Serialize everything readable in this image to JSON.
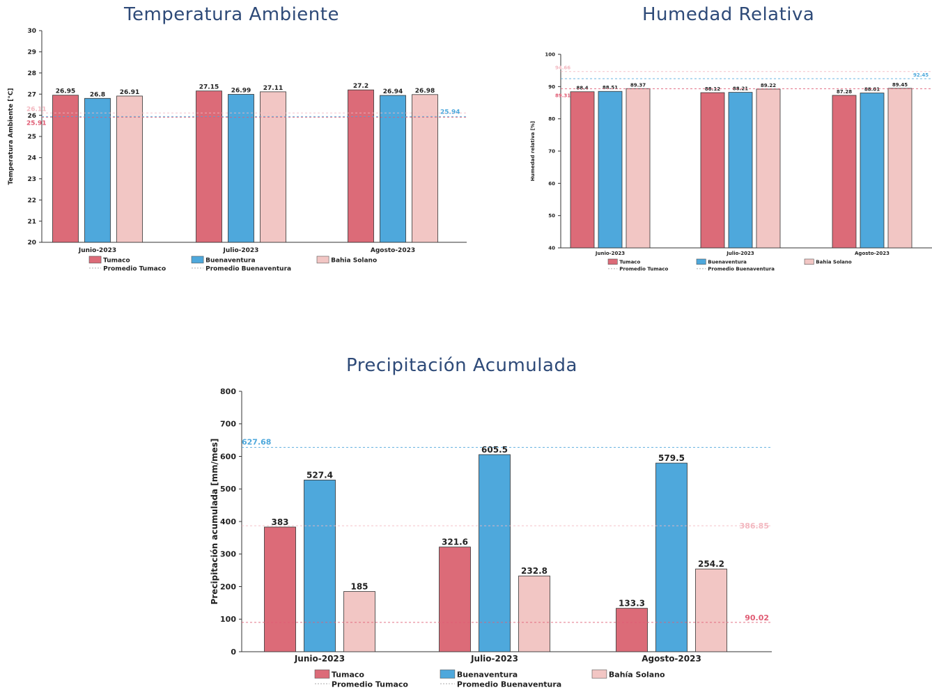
{
  "colors": {
    "tumaco": "#dc6b78",
    "buenaventura": "#4ea8dc",
    "bahia_solano": "#f2c6c4",
    "axis": "#333333",
    "avg_tumaco": "#e05c74",
    "avg_buenaventura": "#4ea8dc",
    "avg_bahia_solano": "#f3b8c0"
  },
  "chart_data": [
    {
      "id": "temp",
      "type": "bar",
      "title": "Temperatura Ambiente",
      "ylabel": "Temperatura Ambiente [°C]",
      "ylim": [
        20,
        30
      ],
      "yticks": [
        20,
        21,
        22,
        23,
        24,
        25,
        26,
        27,
        28,
        29,
        30
      ],
      "categories": [
        "Junio-2023",
        "Julio-2023",
        "Agosto-2023"
      ],
      "series": [
        {
          "name": "Tumaco",
          "values": [
            26.95,
            27.15,
            27.2
          ],
          "labels": [
            "26.95",
            "27.15",
            "27.2"
          ]
        },
        {
          "name": "Buenaventura",
          "values": [
            26.8,
            26.99,
            26.94
          ],
          "labels": [
            "26.8",
            "26.99",
            "26.94"
          ]
        },
        {
          "name": "Bahia Solano",
          "values": [
            26.91,
            27.11,
            26.98
          ],
          "labels": [
            "26.91",
            "27.11",
            "26.98"
          ]
        }
      ],
      "averages": [
        {
          "series": "Tumaco",
          "value": 25.91,
          "label": "25.91"
        },
        {
          "series": "Bahia Solano",
          "value": 26.11,
          "label": "26.11"
        },
        {
          "series": "Buenaventura",
          "value": 25.94,
          "label": "25.94"
        }
      ],
      "legend": {
        "placement": "bottom",
        "entries": [
          "Tumaco",
          "Buenaventura",
          "Bahia Solano",
          "Promedio Tumaco",
          "Promedio Buenaventura"
        ]
      }
    },
    {
      "id": "hum",
      "type": "bar",
      "title": "Humedad Relativa",
      "ylabel": "Humedad relativa [%]",
      "ylim": [
        40,
        100
      ],
      "yticks": [
        40,
        50,
        60,
        70,
        80,
        90,
        100
      ],
      "categories": [
        "Junio-2023",
        "Julio-2023",
        "Agosto-2023"
      ],
      "series": [
        {
          "name": "Tumaco",
          "values": [
            88.4,
            88.12,
            87.28
          ],
          "labels": [
            "88.4",
            "88.12",
            "87.28"
          ]
        },
        {
          "name": "Buenaventura",
          "values": [
            88.51,
            88.21,
            88.01
          ],
          "labels": [
            "88.51",
            "88.21",
            "88.01"
          ]
        },
        {
          "name": "Bahia Solano",
          "values": [
            89.37,
            89.22,
            89.45
          ],
          "labels": [
            "89.37",
            "89.22",
            "89.45"
          ]
        }
      ],
      "averages": [
        {
          "series": "Tumaco",
          "value": 89.31,
          "label": "89.31"
        },
        {
          "series": "Bahia Solano",
          "value": 94.66,
          "label": "94.66"
        },
        {
          "series": "Buenaventura",
          "value": 92.45,
          "label": "92.45"
        }
      ],
      "legend": {
        "placement": "bottom",
        "entries": [
          "Tumaco",
          "Buenaventura",
          "Bahia Solano",
          "Promedio Tumaco",
          "Promedio Buenaventura"
        ]
      }
    },
    {
      "id": "prec",
      "type": "bar",
      "title": "Precipitación Acumulada",
      "ylabel": "Precipitación acumulada [mm/mes]",
      "ylim": [
        0,
        800
      ],
      "yticks": [
        0,
        100,
        200,
        300,
        400,
        500,
        600,
        700,
        800
      ],
      "categories": [
        "Junio-2023",
        "Julio-2023",
        "Agosto-2023"
      ],
      "series": [
        {
          "name": "Tumaco",
          "values": [
            383,
            321.6,
            133.3
          ],
          "labels": [
            "383",
            "321.6",
            "133.3"
          ]
        },
        {
          "name": "Buenaventura",
          "values": [
            527.4,
            605.5,
            579.5
          ],
          "labels": [
            "527.4",
            "605.5",
            "579.5"
          ]
        },
        {
          "name": "Bahía Solano",
          "values": [
            185,
            232.8,
            254.2
          ],
          "labels": [
            "185",
            "232.8",
            "254.2"
          ]
        }
      ],
      "averages": [
        {
          "series": "Buenaventura",
          "value": 627.68,
          "label": "627.68"
        },
        {
          "series": "Bahía Solano",
          "value": 386.85,
          "label": "386.85"
        },
        {
          "series": "Tumaco",
          "value": 90.02,
          "label": "90.02"
        }
      ],
      "legend": {
        "placement": "bottom",
        "entries": [
          "Tumaco",
          "Buenaventura",
          "Bahía Solano",
          "Promedio Tumaco",
          "Promedio Buenaventura"
        ]
      }
    }
  ]
}
